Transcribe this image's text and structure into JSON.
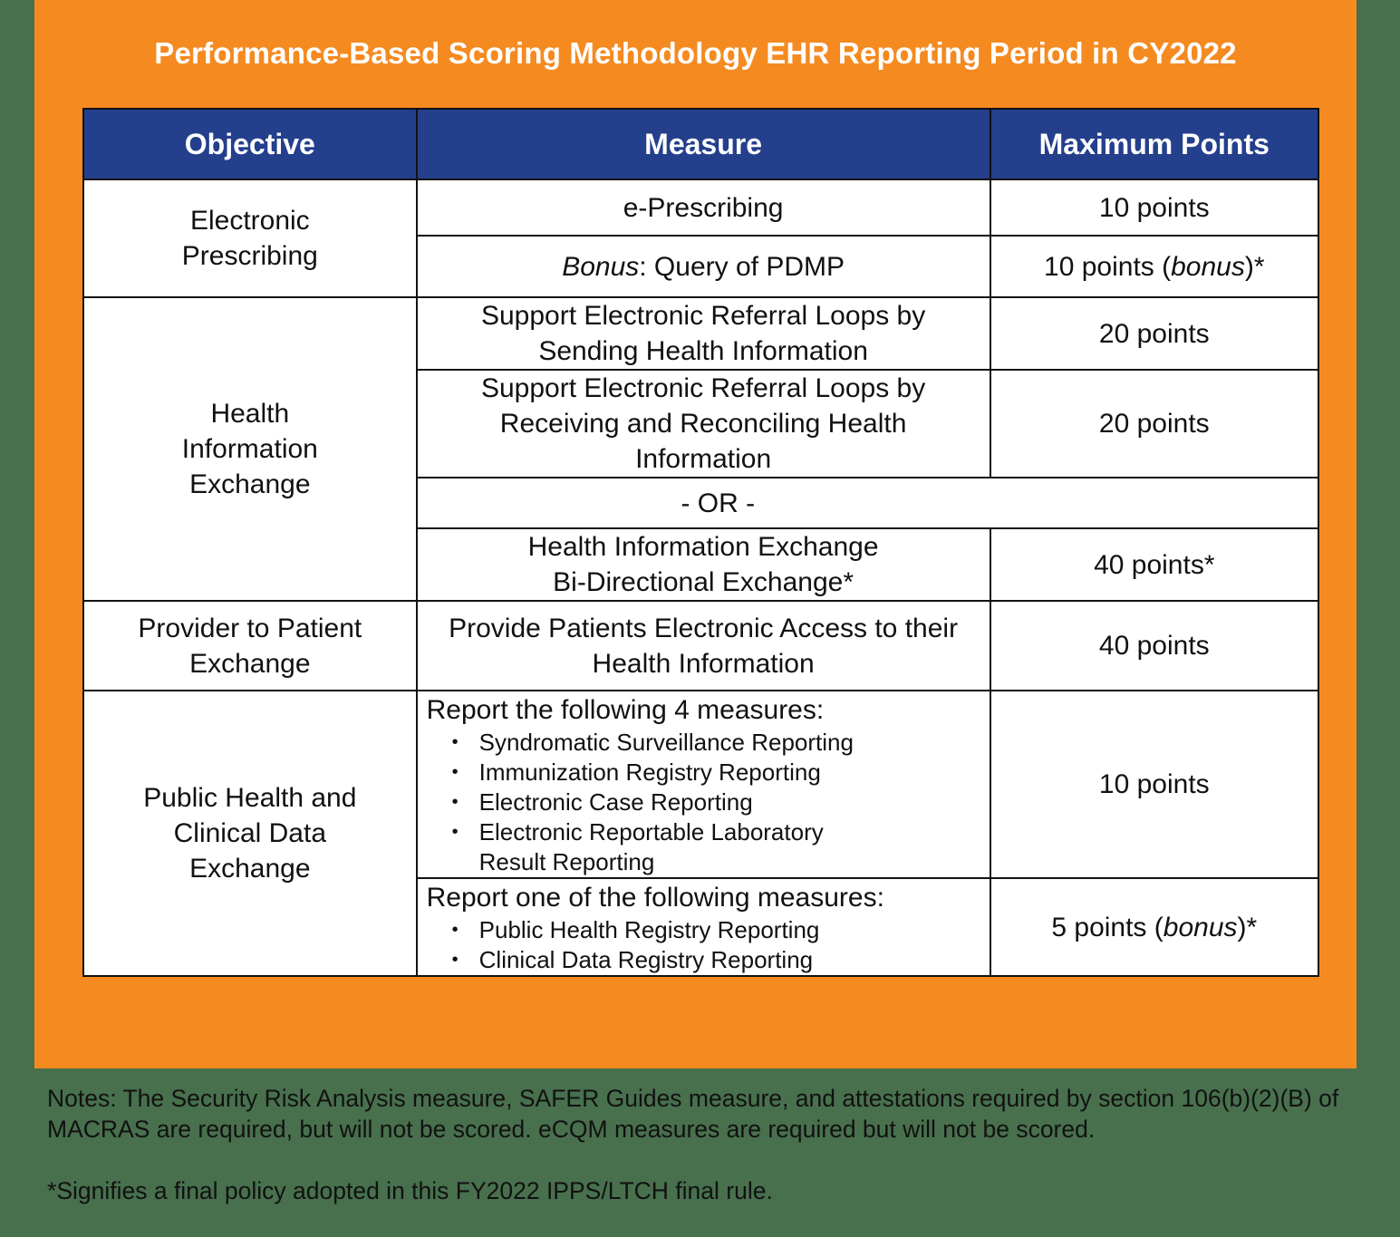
{
  "title": "Performance-Based Scoring Methodology EHR Reporting Period in CY2022",
  "colors": {
    "background": "#48704d",
    "panel": "#f58a20",
    "header_fill": "#243f8c",
    "header_text": "#ffffff",
    "border": "#111111"
  },
  "table": {
    "headers": [
      "Objective",
      "Measure",
      "Maximum Points"
    ],
    "objectives": {
      "electronic_prescribing": "Electronic Prescribing",
      "hie": "Health Information Exchange",
      "p2p": "Provider to Patient Exchange",
      "public_health": "Public Health and Clinical Data Exchange"
    },
    "rows": {
      "e_prescribing": {
        "measure": "e-Prescribing",
        "points": "10 points"
      },
      "pdmp": {
        "measure_prefix": "Bonus",
        "measure_rest": ": Query of PDMP",
        "points_prefix": "10 points (",
        "points_italic": "bonus",
        "points_suffix": ")*"
      },
      "serl_send": {
        "measure": "Support Electronic Referral Loops by Sending Health Information",
        "points": "20 points"
      },
      "serl_receive": {
        "measure": "Support Electronic Referral Loops by Receiving and Reconciling Health Information",
        "points": "20 points"
      },
      "or_divider": "- OR -",
      "hie_bidirectional": {
        "measure_line1": "Health Information Exchange",
        "measure_line2": "Bi-Directional Exchange*",
        "points": "40 points*"
      },
      "patient_access": {
        "measure": "Provide Patients Electronic Access to their Health Information",
        "points": "40 points"
      },
      "ph_required": {
        "lead": "Report the following 4 measures:",
        "items": [
          "Syndromatic Surveillance Reporting",
          "Immunization Registry Reporting",
          "Electronic Case Reporting",
          "Electronic Reportable Laboratory Result Reporting"
        ],
        "points": "10 points"
      },
      "ph_bonus": {
        "lead": "Report one of the following measures:",
        "items": [
          "Public Health Registry Reporting",
          "Clinical Data Registry Reporting"
        ],
        "points_prefix": "5 points (",
        "points_italic": "bonus",
        "points_suffix": ")*"
      }
    }
  },
  "notes": {
    "note1": "Notes: The Security Risk Analysis measure, SAFER Guides measure, and attestations required by section 106(b)(2)(B) of MACRAS are required, but will not be scored. eCQM measures are required but will not be scored.",
    "note2": "*Signifies a final policy adopted in this FY2022 IPPS/LTCH final rule."
  }
}
